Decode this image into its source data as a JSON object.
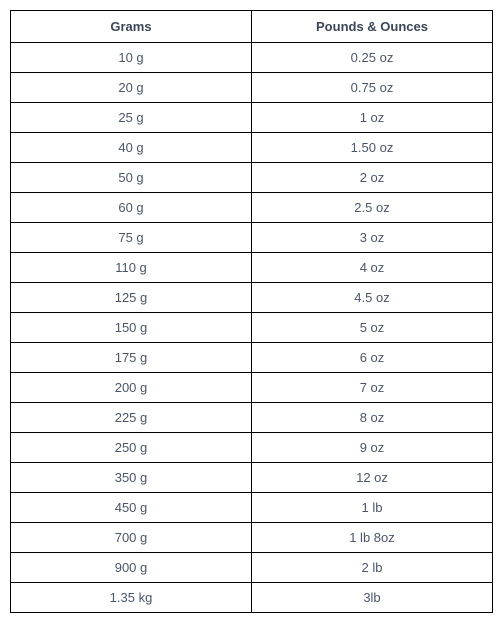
{
  "table": {
    "type": "table",
    "columns": [
      "Grams",
      "Pounds & Ounces"
    ],
    "rows": [
      [
        "10 g",
        "0.25 oz"
      ],
      [
        "20 g",
        "0.75 oz"
      ],
      [
        "25 g",
        "1 oz"
      ],
      [
        "40 g",
        "1.50 oz"
      ],
      [
        "50 g",
        "2 oz"
      ],
      [
        "60 g",
        "2.5 oz"
      ],
      [
        "75 g",
        "3 oz"
      ],
      [
        "110 g",
        "4 oz"
      ],
      [
        "125 g",
        "4.5 oz"
      ],
      [
        "150 g",
        "5 oz"
      ],
      [
        "175 g",
        "6 oz"
      ],
      [
        "200 g",
        "7 oz"
      ],
      [
        "225 g",
        "8 oz"
      ],
      [
        "250 g",
        "9 oz"
      ],
      [
        "350 g",
        "12 oz"
      ],
      [
        "450 g",
        "1 lb"
      ],
      [
        "700 g",
        "1 lb 8oz"
      ],
      [
        "900 g",
        "2 lb"
      ],
      [
        "1.35 kg",
        "3lb"
      ]
    ],
    "header_color": "#3b4657",
    "text_color": "#4a5568",
    "border_color": "#000000",
    "background_color": "#ffffff",
    "font_size": 13,
    "header_font_weight": "bold",
    "column_widths": [
      "50%",
      "50%"
    ],
    "text_align": "center"
  }
}
